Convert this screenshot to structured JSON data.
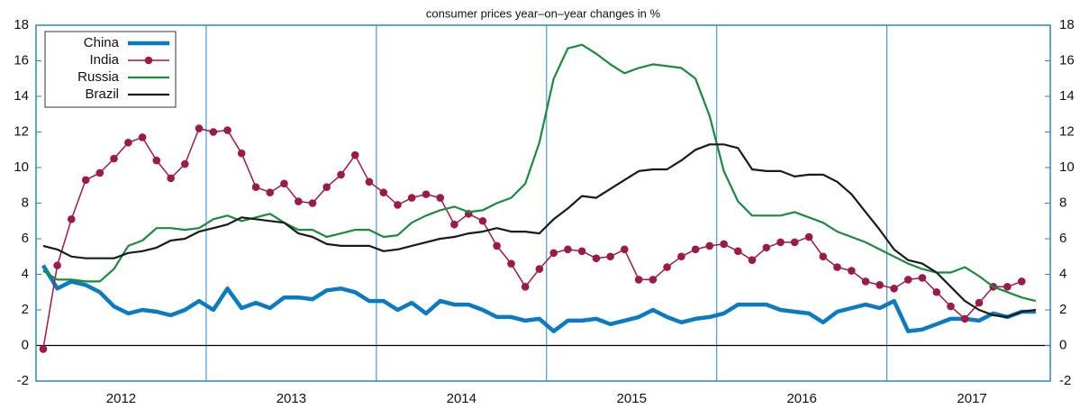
{
  "chart_data": {
    "type": "line",
    "subtitle": "consumer prices year–on–year changes in %",
    "x": [
      2012.042,
      2012.125,
      2012.208,
      2012.292,
      2012.375,
      2012.458,
      2012.542,
      2012.625,
      2012.708,
      2012.792,
      2012.875,
      2012.958,
      2013.042,
      2013.125,
      2013.208,
      2013.292,
      2013.375,
      2013.458,
      2013.542,
      2013.625,
      2013.708,
      2013.792,
      2013.875,
      2013.958,
      2014.042,
      2014.125,
      2014.208,
      2014.292,
      2014.375,
      2014.458,
      2014.542,
      2014.625,
      2014.708,
      2014.792,
      2014.875,
      2014.958,
      2015.042,
      2015.125,
      2015.208,
      2015.292,
      2015.375,
      2015.458,
      2015.542,
      2015.625,
      2015.708,
      2015.792,
      2015.875,
      2015.958,
      2016.042,
      2016.125,
      2016.208,
      2016.292,
      2016.375,
      2016.458,
      2016.542,
      2016.625,
      2016.708,
      2016.792,
      2016.875,
      2016.958,
      2017.042,
      2017.125,
      2017.208,
      2017.292,
      2017.375,
      2017.458,
      2017.542,
      2017.625,
      2017.708,
      2017.792,
      2017.875
    ],
    "series": [
      {
        "name": "China",
        "color": "#0b7bc1",
        "marker": false,
        "width": 4.5,
        "values": [
          4.5,
          3.2,
          3.6,
          3.4,
          3.0,
          2.2,
          1.8,
          2.0,
          1.9,
          1.7,
          2.0,
          2.5,
          2.0,
          3.2,
          2.1,
          2.4,
          2.1,
          2.7,
          2.7,
          2.6,
          3.1,
          3.2,
          3.0,
          2.5,
          2.5,
          2.0,
          2.4,
          1.8,
          2.5,
          2.3,
          2.3,
          2.0,
          1.6,
          1.6,
          1.4,
          1.5,
          0.8,
          1.4,
          1.4,
          1.5,
          1.2,
          1.4,
          1.6,
          2.0,
          1.6,
          1.3,
          1.5,
          1.6,
          1.8,
          2.3,
          2.3,
          2.3,
          2.0,
          1.9,
          1.8,
          1.3,
          1.9,
          2.1,
          2.3,
          2.1,
          2.5,
          0.8,
          0.9,
          1.2,
          1.5,
          1.5,
          1.4,
          1.8,
          1.6,
          1.9,
          1.9
        ]
      },
      {
        "name": "India",
        "color": "#9c1a48",
        "marker": true,
        "width": 1.5,
        "values": [
          -0.2,
          4.5,
          7.1,
          9.3,
          9.7,
          10.5,
          11.4,
          11.7,
          10.4,
          9.4,
          10.2,
          12.2,
          12.0,
          12.1,
          10.8,
          8.9,
          8.6,
          9.1,
          8.1,
          8.0,
          8.9,
          9.6,
          10.7,
          9.2,
          8.6,
          7.9,
          8.3,
          8.5,
          8.3,
          6.8,
          7.4,
          7.0,
          5.6,
          4.6,
          3.3,
          4.3,
          5.2,
          5.4,
          5.3,
          4.9,
          5.0,
          5.4,
          3.7,
          3.7,
          4.4,
          5.0,
          5.4,
          5.6,
          5.7,
          5.3,
          4.8,
          5.5,
          5.8,
          5.8,
          6.1,
          5.0,
          4.4,
          4.2,
          3.6,
          3.4,
          3.2,
          3.7,
          3.8,
          3.0,
          2.2,
          1.5,
          2.4,
          3.3,
          3.3,
          3.6,
          null
        ]
      },
      {
        "name": "Russia",
        "color": "#1b8a3e",
        "marker": false,
        "width": 2.2,
        "values": [
          4.2,
          3.7,
          3.7,
          3.6,
          3.6,
          4.3,
          5.6,
          5.9,
          6.6,
          6.6,
          6.5,
          6.6,
          7.1,
          7.3,
          7.0,
          7.2,
          7.4,
          6.9,
          6.5,
          6.5,
          6.1,
          6.3,
          6.5,
          6.5,
          6.1,
          6.2,
          6.9,
          7.3,
          7.6,
          7.8,
          7.5,
          7.6,
          8.0,
          8.3,
          9.1,
          11.4,
          15.0,
          16.7,
          16.9,
          16.4,
          15.8,
          15.3,
          15.6,
          15.8,
          15.7,
          15.6,
          15.0,
          12.9,
          9.8,
          8.1,
          7.3,
          7.3,
          7.3,
          7.5,
          7.2,
          6.9,
          6.4,
          6.1,
          5.8,
          5.4,
          5.0,
          4.6,
          4.3,
          4.1,
          4.1,
          4.4,
          3.9,
          3.3,
          3.0,
          2.7,
          2.5
        ]
      },
      {
        "name": "Brazil",
        "color": "#1a1a1a",
        "marker": false,
        "width": 2.2,
        "values": [
          5.6,
          5.4,
          5.0,
          4.9,
          4.9,
          4.9,
          5.2,
          5.3,
          5.5,
          5.9,
          6.0,
          6.4,
          6.6,
          6.8,
          7.2,
          7.1,
          7.0,
          6.9,
          6.3,
          6.1,
          5.7,
          5.6,
          5.6,
          5.6,
          5.3,
          5.4,
          5.6,
          5.8,
          6.0,
          6.1,
          6.3,
          6.4,
          6.6,
          6.4,
          6.4,
          6.3,
          7.1,
          7.7,
          8.4,
          8.3,
          8.8,
          9.3,
          9.8,
          9.9,
          9.9,
          10.4,
          11.0,
          11.3,
          11.3,
          11.1,
          9.9,
          9.8,
          9.8,
          9.5,
          9.6,
          9.6,
          9.2,
          8.5,
          7.5,
          6.5,
          5.4,
          4.8,
          4.6,
          4.1,
          3.3,
          2.5,
          2.0,
          1.7,
          1.6,
          1.9,
          2.0
        ]
      }
    ],
    "xlim": [
      2012,
      2017.96
    ],
    "xticks": [
      {
        "value": 2012.5,
        "label": "2012"
      },
      {
        "value": 2013.5,
        "label": "2013"
      },
      {
        "value": 2014.5,
        "label": "2014"
      },
      {
        "value": 2015.5,
        "label": "2015"
      },
      {
        "value": 2016.5,
        "label": "2016"
      },
      {
        "value": 2017.5,
        "label": "2017"
      }
    ],
    "xgrid": [
      2013,
      2014,
      2015,
      2016,
      2017
    ],
    "ylim": [
      -2,
      18
    ],
    "yticks": [
      -2,
      0,
      2,
      4,
      6,
      8,
      10,
      12,
      14,
      16,
      18
    ],
    "y2ticks": [
      -2,
      0,
      2,
      4,
      6,
      8,
      10,
      12,
      14,
      16,
      18
    ],
    "legend": "upper left"
  }
}
